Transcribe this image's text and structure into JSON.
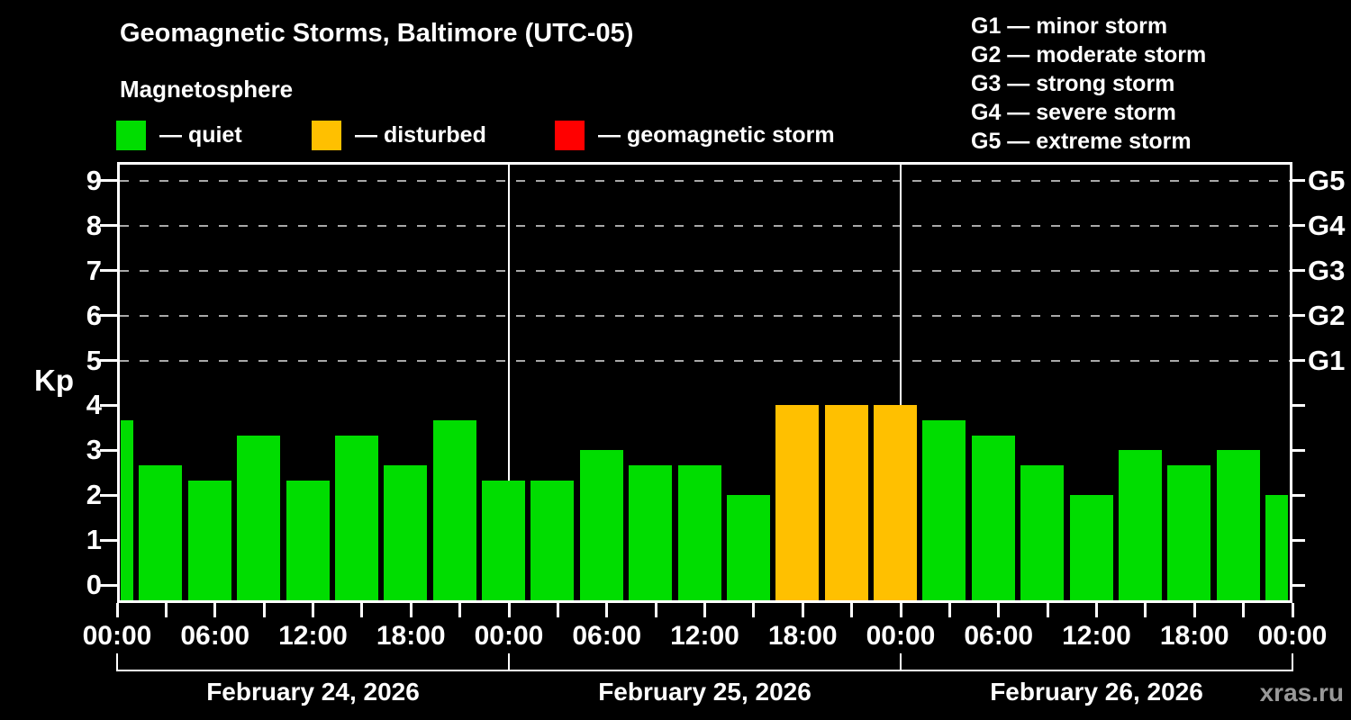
{
  "title": "Geomagnetic Storms, Baltimore (UTC-05)",
  "subtitle": "Magnetosphere",
  "watermark": "xras.ru",
  "legend": {
    "items": [
      {
        "name": "quiet",
        "label": "— quiet",
        "color": "#00dd00"
      },
      {
        "name": "disturbed",
        "label": "— disturbed",
        "color": "#ffc000"
      },
      {
        "name": "geomagnetic-storm",
        "label": "— geomagnetic storm",
        "color": "#ff0000"
      }
    ]
  },
  "storm_scale": [
    "G1 — minor storm",
    "G2 — moderate storm",
    "G3 — strong storm",
    "G4 — severe storm",
    "G5 — extreme storm"
  ],
  "chart_data": {
    "type": "bar",
    "title": "Geomagnetic Storms, Baltimore (UTC-05)",
    "ylabel": "Kp",
    "ylim": [
      0,
      9.5
    ],
    "yticks": [
      0,
      1,
      2,
      3,
      4,
      5,
      6,
      7,
      8,
      9
    ],
    "grid_levels_kp": [
      5,
      6,
      7,
      8,
      9
    ],
    "right_axis": [
      {
        "kp": 5,
        "label": "G1"
      },
      {
        "kp": 6,
        "label": "G2"
      },
      {
        "kp": 7,
        "label": "G3"
      },
      {
        "kp": 8,
        "label": "G4"
      },
      {
        "kp": 9,
        "label": "G5"
      }
    ],
    "x_tick_labels": [
      "00:00",
      "06:00",
      "12:00",
      "18:00",
      "00:00",
      "06:00",
      "12:00",
      "18:00",
      "00:00",
      "06:00",
      "12:00",
      "18:00",
      "00:00"
    ],
    "days": [
      {
        "label": "February 24, 2026"
      },
      {
        "label": "February 25, 2026"
      },
      {
        "label": "February 26, 2026"
      }
    ],
    "series": [
      {
        "hour": 0,
        "kp": 3.67,
        "condition": "quiet"
      },
      {
        "hour": 3,
        "kp": 2.67,
        "condition": "quiet"
      },
      {
        "hour": 6,
        "kp": 2.33,
        "condition": "quiet"
      },
      {
        "hour": 9,
        "kp": 3.33,
        "condition": "quiet"
      },
      {
        "hour": 12,
        "kp": 2.33,
        "condition": "quiet"
      },
      {
        "hour": 15,
        "kp": 3.33,
        "condition": "quiet"
      },
      {
        "hour": 18,
        "kp": 2.67,
        "condition": "quiet"
      },
      {
        "hour": 21,
        "kp": 3.67,
        "condition": "quiet"
      },
      {
        "hour": 24,
        "kp": 2.33,
        "condition": "quiet"
      },
      {
        "hour": 27,
        "kp": 2.33,
        "condition": "quiet"
      },
      {
        "hour": 30,
        "kp": 3.0,
        "condition": "quiet"
      },
      {
        "hour": 33,
        "kp": 2.67,
        "condition": "quiet"
      },
      {
        "hour": 36,
        "kp": 2.67,
        "condition": "quiet"
      },
      {
        "hour": 39,
        "kp": 2.0,
        "condition": "quiet"
      },
      {
        "hour": 42,
        "kp": 4.0,
        "condition": "disturbed"
      },
      {
        "hour": 45,
        "kp": 4.0,
        "condition": "disturbed"
      },
      {
        "hour": 48,
        "kp": 4.0,
        "condition": "disturbed"
      },
      {
        "hour": 51,
        "kp": 3.67,
        "condition": "quiet"
      },
      {
        "hour": 54,
        "kp": 3.33,
        "condition": "quiet"
      },
      {
        "hour": 57,
        "kp": 2.67,
        "condition": "quiet"
      },
      {
        "hour": 60,
        "kp": 2.0,
        "condition": "quiet"
      },
      {
        "hour": 63,
        "kp": 3.0,
        "condition": "quiet"
      },
      {
        "hour": 66,
        "kp": 2.67,
        "condition": "quiet"
      },
      {
        "hour": 69,
        "kp": 3.0,
        "condition": "quiet"
      },
      {
        "hour": 72,
        "kp": 2.0,
        "condition": "quiet"
      }
    ]
  }
}
